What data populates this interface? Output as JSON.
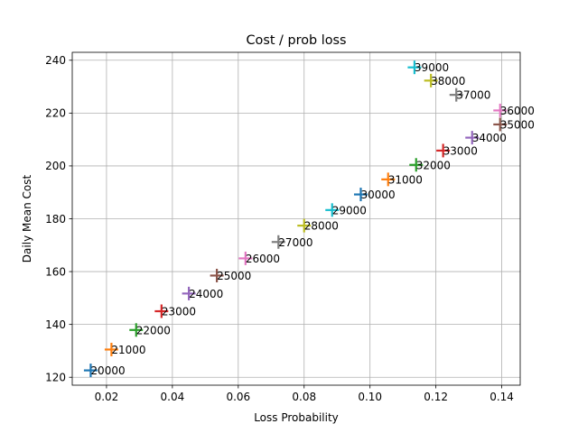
{
  "chart_data": {
    "type": "scatter",
    "title": "Cost / prob loss",
    "xlabel": "Loss Probability",
    "ylabel": "Daily Mean Cost",
    "xlim": [
      0.0096,
      0.1456
    ],
    "ylim": [
      117,
      243
    ],
    "x_ticks": [
      0.02,
      0.04,
      0.06,
      0.08,
      0.1,
      0.12,
      0.14
    ],
    "x_tick_labels": [
      "0.02",
      "0.04",
      "0.06",
      "0.08",
      "0.10",
      "0.12",
      "0.14"
    ],
    "y_ticks": [
      120,
      140,
      160,
      180,
      200,
      220,
      240
    ],
    "y_tick_labels": [
      "120",
      "140",
      "160",
      "180",
      "200",
      "220",
      "240"
    ],
    "grid": true,
    "marker": "plus",
    "points": [
      {
        "label": "20000",
        "x": 0.0152,
        "y": 122.6,
        "color": "#1f77b4"
      },
      {
        "label": "21000",
        "x": 0.0215,
        "y": 130.5,
        "color": "#ff7f0e"
      },
      {
        "label": "22000",
        "x": 0.029,
        "y": 137.9,
        "color": "#2ca02c"
      },
      {
        "label": "23000",
        "x": 0.0367,
        "y": 145.0,
        "color": "#d62728"
      },
      {
        "label": "24000",
        "x": 0.045,
        "y": 151.7,
        "color": "#9467bd"
      },
      {
        "label": "25000",
        "x": 0.0535,
        "y": 158.5,
        "color": "#8c564b"
      },
      {
        "label": "26000",
        "x": 0.0622,
        "y": 165.0,
        "color": "#e377c2"
      },
      {
        "label": "27000",
        "x": 0.0722,
        "y": 171.2,
        "color": "#7f7f7f"
      },
      {
        "label": "28000",
        "x": 0.08,
        "y": 177.4,
        "color": "#bcbd22"
      },
      {
        "label": "29000",
        "x": 0.0885,
        "y": 183.3,
        "color": "#17becf"
      },
      {
        "label": "30000",
        "x": 0.0972,
        "y": 189.2,
        "color": "#1f77b4"
      },
      {
        "label": "31000",
        "x": 0.1055,
        "y": 194.9,
        "color": "#ff7f0e"
      },
      {
        "label": "32000",
        "x": 0.114,
        "y": 200.4,
        "color": "#2ca02c"
      },
      {
        "label": "33000",
        "x": 0.1222,
        "y": 205.8,
        "color": "#d62728"
      },
      {
        "label": "34000",
        "x": 0.131,
        "y": 210.7,
        "color": "#9467bd"
      },
      {
        "label": "35000",
        "x": 0.1395,
        "y": 215.7,
        "color": "#8c564b"
      },
      {
        "label": "36000",
        "x": 0.1395,
        "y": 221.0,
        "color": "#e377c2"
      },
      {
        "label": "37000",
        "x": 0.1262,
        "y": 226.9,
        "color": "#7f7f7f"
      },
      {
        "label": "38000",
        "x": 0.1185,
        "y": 232.3,
        "color": "#bcbd22"
      },
      {
        "label": "39000",
        "x": 0.1135,
        "y": 237.3,
        "color": "#17becf"
      }
    ]
  }
}
